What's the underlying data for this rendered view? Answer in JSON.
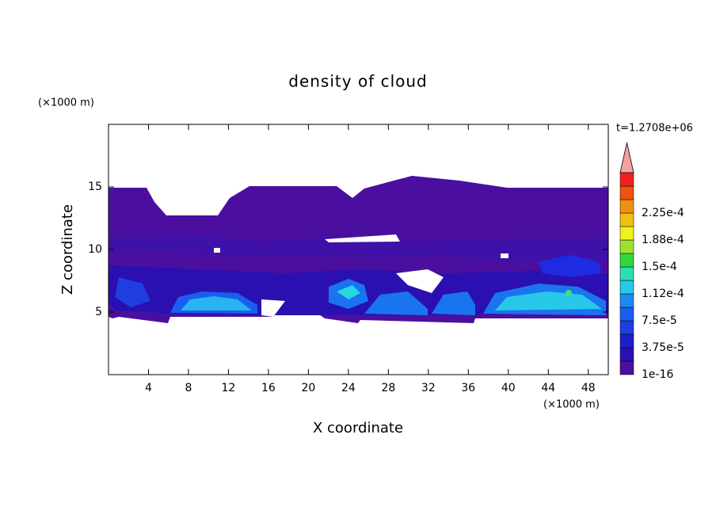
{
  "chart_data": {
    "type": "contour",
    "title": "density of cloud",
    "x_label": "X coordinate",
    "y_label": "Z coordinate",
    "x_unit": "(×1000 m)",
    "y_unit": "(×1000 m)",
    "annotation": "t=1.2708e+06",
    "xlim": [
      0,
      50
    ],
    "xticks": [
      4,
      8,
      12,
      16,
      20,
      24,
      28,
      32,
      36,
      40,
      44,
      48
    ],
    "ylim": [
      0,
      20
    ],
    "yticks": [
      5,
      10,
      15
    ],
    "colorbar": {
      "colors": [
        "#4b0fa0",
        "#2a10b0",
        "#1e1ec8",
        "#1e3ee0",
        "#1a5ef0",
        "#1a8cf0",
        "#28c8e8",
        "#28e0b0",
        "#30d840",
        "#a0e030",
        "#f0f020",
        "#f0c010",
        "#f09010",
        "#f05010",
        "#f02020"
      ],
      "extend_color": "#f4a0a0",
      "ticks": [
        1e-16,
        {
          "value": 3.75e-05,
          "label": "3.75e-5"
        },
        {
          "value": 7.5e-05,
          "label": "7.5e-5"
        },
        {
          "value": 0.000112,
          "label": "1.12e-4"
        },
        {
          "value": 0.00015,
          "label": "1.5e-4"
        },
        {
          "value": 0.000188,
          "label": "1.88e-4"
        },
        {
          "value": 0.000225,
          "label": "2.25e-4"
        }
      ]
    }
  }
}
